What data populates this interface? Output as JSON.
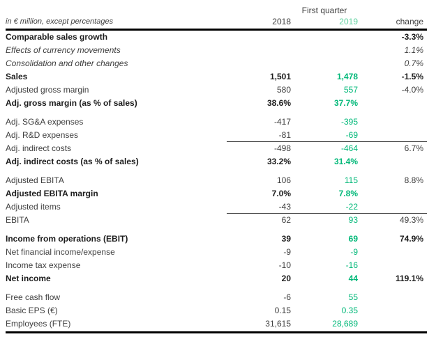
{
  "table": {
    "note": "in € million, except percentages",
    "group_header": "First quarter",
    "columns": {
      "y2018": "2018",
      "y2019": "2019",
      "change": "change"
    },
    "rows": [
      {
        "label": "Comparable sales growth",
        "v2018": "",
        "v2019": "",
        "change": "-3.3%",
        "emphasis": "bold"
      },
      {
        "label": "Effects of currency movements",
        "v2018": "",
        "v2019": "",
        "change": "1.1%",
        "emphasis": "italic"
      },
      {
        "label": "Consolidation and other changes",
        "v2018": "",
        "v2019": "",
        "change": "0.7%",
        "emphasis": "italic"
      },
      {
        "label": "Sales",
        "v2018": "1,501",
        "v2019": "1,478",
        "change": "-1.5%",
        "emphasis": "bold"
      },
      {
        "label": "Adjusted gross margin",
        "v2018": "580",
        "v2019": "557",
        "change": "-4.0%",
        "emphasis": "normal"
      },
      {
        "label": "Adj. gross margin (as % of sales)",
        "v2018": "38.6%",
        "v2019": "37.7%",
        "change": "",
        "emphasis": "bold"
      },
      {
        "label": "Adj. SG&A expenses",
        "v2018": "-417",
        "v2019": "-395",
        "change": "",
        "emphasis": "normal",
        "gap_before": true
      },
      {
        "label": "Adj. R&D expenses",
        "v2018": "-81",
        "v2019": "-69",
        "change": "",
        "emphasis": "normal",
        "rule_after": true
      },
      {
        "label": "Adj. indirect costs",
        "v2018": "-498",
        "v2019": "-464",
        "change": "6.7%",
        "emphasis": "normal"
      },
      {
        "label": "Adj. indirect costs (as % of sales)",
        "v2018": "33.2%",
        "v2019": "31.4%",
        "change": "",
        "emphasis": "bold"
      },
      {
        "label": "Adjusted EBITA",
        "v2018": "106",
        "v2019": "115",
        "change": "8.8%",
        "emphasis": "normal",
        "gap_before": true
      },
      {
        "label": "Adjusted EBITA margin",
        "v2018": "7.0%",
        "v2019": "7.8%",
        "change": "",
        "emphasis": "bold"
      },
      {
        "label": "Adjusted items",
        "v2018": "-43",
        "v2019": "-22",
        "change": "",
        "emphasis": "normal",
        "rule_after": true
      },
      {
        "label": "EBITA",
        "v2018": "62",
        "v2019": "93",
        "change": "49.3%",
        "emphasis": "normal"
      },
      {
        "label": "Income from operations (EBIT)",
        "v2018": "39",
        "v2019": "69",
        "change": "74.9%",
        "emphasis": "bold",
        "gap_before": true
      },
      {
        "label": "Net financial income/expense",
        "v2018": "-9",
        "v2019": "-9",
        "change": "",
        "emphasis": "normal"
      },
      {
        "label": "Income tax expense",
        "v2018": "-10",
        "v2019": "-16",
        "change": "",
        "emphasis": "normal"
      },
      {
        "label": "Net income",
        "v2018": "20",
        "v2019": "44",
        "change": "119.1%",
        "emphasis": "bold"
      },
      {
        "label": "Free cash flow",
        "v2018": "-6",
        "v2019": "55",
        "change": "",
        "emphasis": "normal",
        "gap_before": true
      },
      {
        "label": "Basic EPS (€)",
        "v2018": "0.15",
        "v2019": "0.35",
        "change": "",
        "emphasis": "normal"
      },
      {
        "label": "Employees (FTE)",
        "v2018": "31,615",
        "v2019": "28,689",
        "change": "",
        "emphasis": "normal"
      }
    ]
  },
  "colors": {
    "value_green": "#00b878",
    "header_green": "#62d2a2",
    "text": "#3f3f3f",
    "text_bold": "#1c1c1c",
    "rule": "#000000"
  }
}
